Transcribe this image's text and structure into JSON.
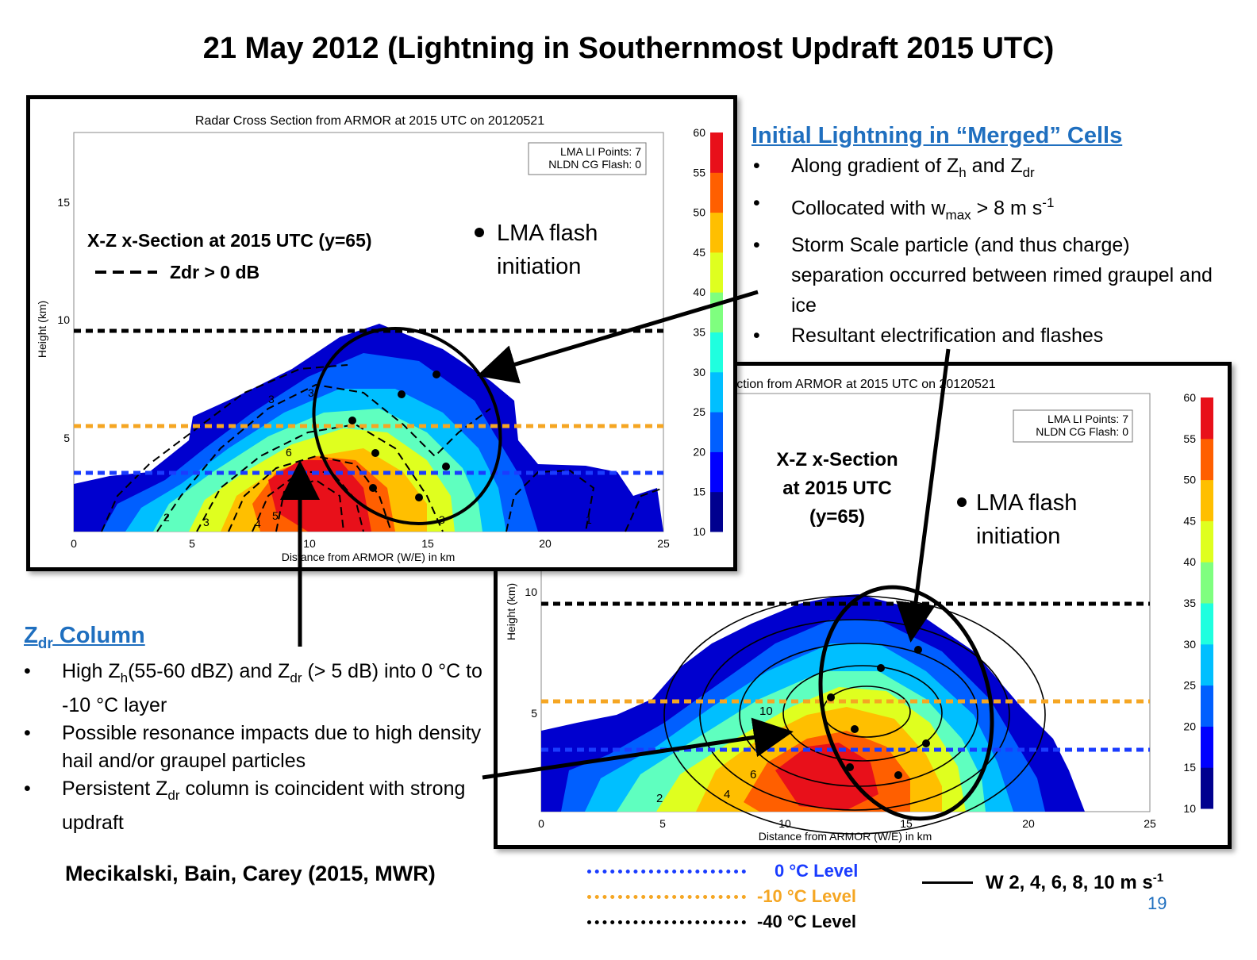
{
  "title": "21 May 2012 (Lightning in Southernmost Updraft 2015 UTC)",
  "panel1": {
    "chart_title": "Radar Cross Section from ARMOR at 2015 UTC on 20120521",
    "xlabel": "Distance from ARMOR (W/E) in km",
    "ylabel": "Height (km)",
    "x_ticks": [
      "0",
      "5",
      "10",
      "15",
      "20",
      "25"
    ],
    "y_ticks": [
      "5",
      "10",
      "15"
    ],
    "colorbar_ticks": [
      "60",
      "55",
      "50",
      "45",
      "40",
      "35",
      "30",
      "25",
      "20",
      "15",
      "10"
    ],
    "box_line1": "LMA LI Points: 7",
    "box_line2": "NLDN CG Flash: 0",
    "overlay_line1": "X-Z x-Section at 2015 UTC (y=65)",
    "overlay_zdr": "Zdr > 0 dB",
    "lma_line1": "LMA flash",
    "lma_line2": "initiation",
    "contour_labels": [
      "3",
      "3",
      "2",
      "3",
      "4",
      "5",
      "6",
      "3",
      "1"
    ]
  },
  "panel2": {
    "chart_title": "ection from ARMOR at 2015 UTC on 20120521",
    "xlabel": "Distance from ARMOR (W/E) in km",
    "ylabel": "Height (km)",
    "x_ticks": [
      "0",
      "5",
      "10",
      "15",
      "20",
      "25"
    ],
    "y_ticks": [
      "5",
      "10"
    ],
    "colorbar_ticks": [
      "60",
      "55",
      "50",
      "45",
      "40",
      "35",
      "30",
      "25",
      "20",
      "15",
      "10"
    ],
    "box_line1": "LMA LI Points: 7",
    "box_line2": "NLDN CG Flash: 0",
    "overlay_lines": [
      "X-Z x-Section",
      "at 2015 UTC",
      "(y=65)"
    ],
    "lma_line1": "LMA flash",
    "lma_line2": "initiation",
    "contour_labels": [
      "2",
      "4",
      "6",
      "10"
    ]
  },
  "right_text": {
    "heading": "Initial Lightning in “Merged” Cells",
    "bullets": [
      "Along gradient of Zh and Zdr",
      "Collocated with wmax > 8 m s-1",
      "Storm Scale particle (and thus charge) separation occurred between rimed graupel and ice",
      "Resultant electrification and flashes"
    ]
  },
  "left_text": {
    "heading": "Zdr Column",
    "bullets": [
      "High Zh(55-60 dBZ) and Zdr (> 5 dB) into 0 °C to -10 °C layer",
      "Possible resonance impacts due to high density hail and/or graupel particles",
      "Persistent Zdr column is coincident with strong updraft"
    ]
  },
  "citation": "Mecikalski, Bain, Carey (2015, MWR)",
  "legend": {
    "items": [
      {
        "label": "0 °C Level",
        "color": "#1a3cff"
      },
      {
        "label": "-10 °C Level",
        "color": "#f5a623"
      },
      {
        "label": "-40 °C Level",
        "color": "#000000"
      }
    ],
    "w_label": "W 2, 4, 6, 8, 10 m s-1"
  },
  "page_number": "19",
  "colors": {
    "zero_level": "#1a3cff",
    "minus10_level": "#f5a623",
    "minus40_level": "#000000",
    "heading_blue": "#1f6fbf"
  },
  "colorbar_colors": [
    "#00008f",
    "#0000ff",
    "#005fff",
    "#00bfff",
    "#1fffdf",
    "#7fff7f",
    "#dfff1f",
    "#ffbf00",
    "#ff5f00",
    "#e8101a"
  ]
}
